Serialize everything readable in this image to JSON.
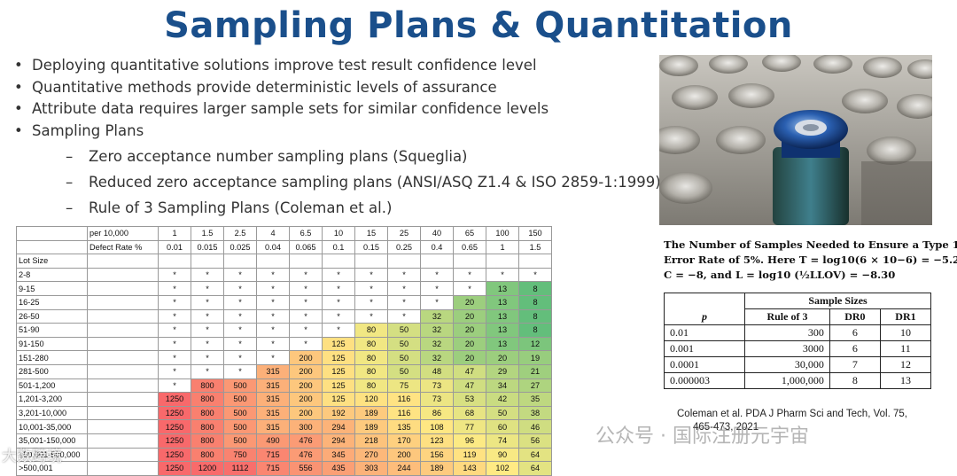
{
  "slide": {
    "title": "Sampling Plans & Quantitation",
    "bullets": [
      "Deploying quantitative solutions improve test result confidence level",
      "Quantitative methods provide deterministic levels of assurance",
      "Attribute data requires larger sample sets for similar confidence levels",
      "Sampling Plans"
    ],
    "subbullets": [
      "Zero acceptance number sampling plans (Squeglia)",
      "Reduced zero acceptance sampling plans (ANSI/ASQ Z1.4 & ISO 2859-1:1999)",
      "Rule of 3 Sampling Plans (Coleman et al.)"
    ],
    "bullet_glyph": "•",
    "dash_glyph": "–"
  },
  "photo": {
    "description_icon": "vials-photo"
  },
  "caption_lines": [
    "The Number of Samples Needed to Ensure a Type 1",
    "Error Rate of 5%. Here T = log10(6 × 10−6) = −5.22,",
    "C = −8, and L = log10 (½LLOV) = −8.30"
  ],
  "sample_table": {
    "group_header": "Sample Sizes",
    "col_p": "p",
    "col_rule3": "Rule of 3",
    "col_dr0": "DR0",
    "col_dr1": "DR1",
    "rows": [
      [
        "0.01",
        "300",
        "6",
        "10"
      ],
      [
        "0.001",
        "3000",
        "6",
        "11"
      ],
      [
        "0.0001",
        "30,000",
        "7",
        "12"
      ],
      [
        "0.000003",
        "1,000,000",
        "8",
        "13"
      ]
    ]
  },
  "reference": {
    "line1": "Coleman et al. PDA J Pharm Sci and Tech, Vol. 75,",
    "line2": "465-473, 2021"
  },
  "matrix": {
    "per_label": "per 10,000",
    "defect_label": "Defect Rate %",
    "lot_label": "Lot Size",
    "per_values": [
      "1",
      "1.5",
      "2.5",
      "4",
      "6.5",
      "10",
      "15",
      "25",
      "40",
      "65",
      "100",
      "150"
    ],
    "defect_values": [
      "0.01",
      "0.015",
      "0.025",
      "0.04",
      "0.065",
      "0.1",
      "0.15",
      "0.25",
      "0.4",
      "0.65",
      "1",
      "1.5"
    ],
    "rows": [
      {
        "lot": "2-8",
        "cells": [
          "*",
          "*",
          "*",
          "*",
          "*",
          "*",
          "*",
          "*",
          "*",
          "*",
          "*",
          "*"
        ]
      },
      {
        "lot": "9-15",
        "cells": [
          "*",
          "*",
          "*",
          "*",
          "*",
          "*",
          "*",
          "*",
          "*",
          "*",
          "13",
          "8"
        ]
      },
      {
        "lot": "16-25",
        "cells": [
          "*",
          "*",
          "*",
          "*",
          "*",
          "*",
          "*",
          "*",
          "*",
          "20",
          "13",
          "8"
        ]
      },
      {
        "lot": "26-50",
        "cells": [
          "*",
          "*",
          "*",
          "*",
          "*",
          "*",
          "*",
          "*",
          "32",
          "20",
          "13",
          "8"
        ]
      },
      {
        "lot": "51-90",
        "cells": [
          "*",
          "*",
          "*",
          "*",
          "*",
          "*",
          "80",
          "50",
          "32",
          "20",
          "13",
          "8"
        ]
      },
      {
        "lot": "91-150",
        "cells": [
          "*",
          "*",
          "*",
          "*",
          "*",
          "125",
          "80",
          "50",
          "32",
          "20",
          "13",
          "12"
        ]
      },
      {
        "lot": "151-280",
        "cells": [
          "*",
          "*",
          "*",
          "*",
          "200",
          "125",
          "80",
          "50",
          "32",
          "20",
          "20",
          "19"
        ]
      },
      {
        "lot": "281-500",
        "cells": [
          "*",
          "*",
          "*",
          "315",
          "200",
          "125",
          "80",
          "50",
          "48",
          "47",
          "29",
          "21"
        ]
      },
      {
        "lot": "501-1,200",
        "cells": [
          "*",
          "800",
          "500",
          "315",
          "200",
          "125",
          "80",
          "75",
          "73",
          "47",
          "34",
          "27"
        ]
      },
      {
        "lot": "1,201-3,200",
        "cells": [
          "1250",
          "800",
          "500",
          "315",
          "200",
          "125",
          "120",
          "116",
          "73",
          "53",
          "42",
          "35"
        ]
      },
      {
        "lot": "3,201-10,000",
        "cells": [
          "1250",
          "800",
          "500",
          "315",
          "200",
          "192",
          "189",
          "116",
          "86",
          "68",
          "50",
          "38"
        ]
      },
      {
        "lot": "10,001-35,000",
        "cells": [
          "1250",
          "800",
          "500",
          "315",
          "300",
          "294",
          "189",
          "135",
          "108",
          "77",
          "60",
          "46"
        ]
      },
      {
        "lot": "35,001-150,000",
        "cells": [
          "1250",
          "800",
          "500",
          "490",
          "476",
          "294",
          "218",
          "170",
          "123",
          "96",
          "74",
          "56"
        ]
      },
      {
        "lot": "150,001-500,000",
        "cells": [
          "1250",
          "800",
          "750",
          "715",
          "476",
          "345",
          "270",
          "200",
          "156",
          "119",
          "90",
          "64"
        ]
      },
      {
        "lot": ">500,001",
        "cells": [
          "1250",
          "1200",
          "1112",
          "715",
          "556",
          "435",
          "303",
          "244",
          "189",
          "143",
          "102",
          "64"
        ]
      }
    ]
  },
  "watermarks": {
    "main": "公众号 · 国际注册元宇宙",
    "corner": "大数跨境"
  },
  "colors": {
    "title": "#1a4f8b",
    "heat_low": "#63be7b",
    "heat_mid": "#ffeb84",
    "heat_high": "#f8696b"
  }
}
